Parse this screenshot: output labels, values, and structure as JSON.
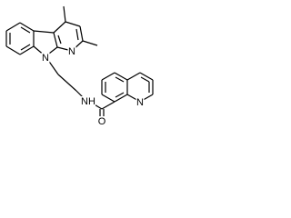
{
  "atoms": [
    {
      "label": "N"
    },
    {
      "label": "N"
    },
    {
      "label": "NH"
    },
    {
      "label": "O"
    },
    {
      "label": "N"
    }
  ]
}
